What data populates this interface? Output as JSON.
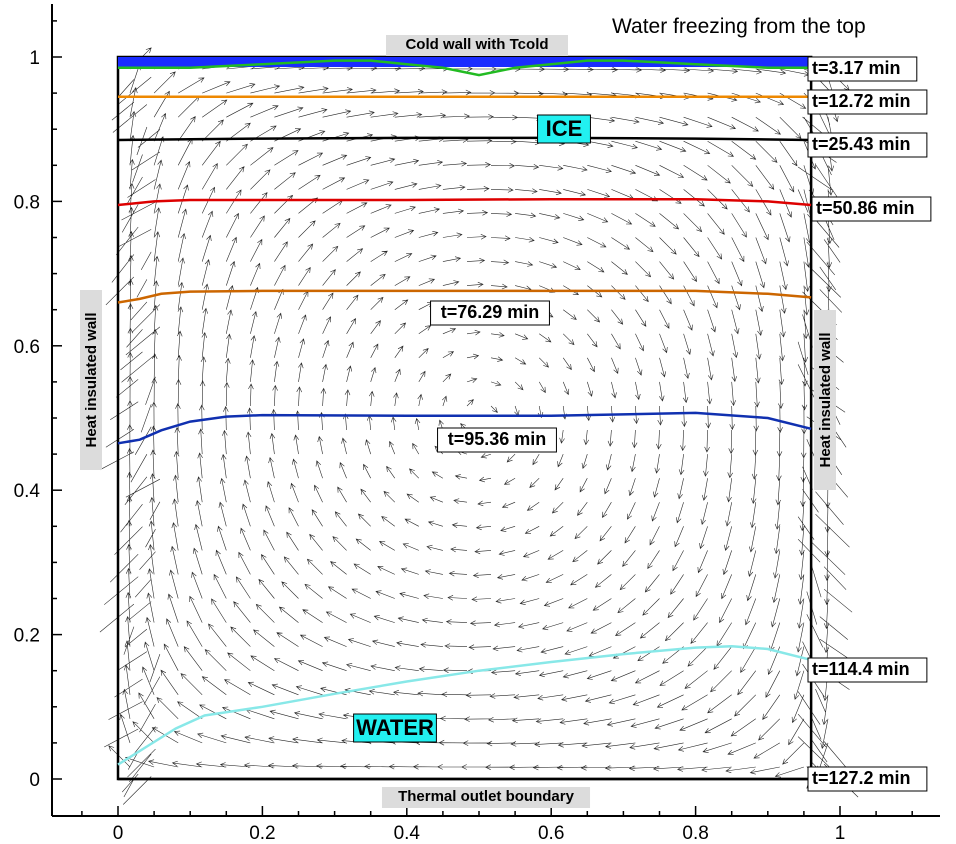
{
  "chart_data": {
    "type": "line",
    "title": "Water freezing from the top",
    "xlabel": "",
    "ylabel": "",
    "xlim": [
      -0.07,
      1.13
    ],
    "ylim": [
      -0.05,
      1.065
    ],
    "x_ticks": [
      "0",
      "0.2",
      "0.4",
      "0.6",
      "0.8",
      "1"
    ],
    "x_tick_values": [
      0,
      0.2,
      0.4,
      0.6,
      0.8,
      1
    ],
    "y_ticks": [
      "0",
      "0.2",
      "0.4",
      "0.6",
      "0.8",
      "1"
    ],
    "y_tick_values": [
      0,
      0.2,
      0.4,
      0.6,
      0.8,
      1
    ],
    "grid": false,
    "annotations": {
      "top_wall": "Cold wall with Tcold",
      "bottom_wall": "Thermal outlet boundary",
      "left_wall": "Heat insulated wall",
      "right_wall": "Heat insulated wall",
      "ice": "ICE",
      "water": "WATER"
    },
    "series": [
      {
        "name": "t=3.17 min",
        "color": "#22bb22",
        "x": [
          0,
          0.1,
          0.2,
          0.3,
          0.35,
          0.4,
          0.45,
          0.5,
          0.55,
          0.6,
          0.65,
          0.7,
          0.8,
          0.9,
          0.96
        ],
        "y": [
          0.985,
          0.985,
          0.99,
          0.995,
          0.995,
          0.99,
          0.985,
          0.975,
          0.985,
          0.99,
          0.995,
          0.995,
          0.99,
          0.985,
          0.985
        ]
      },
      {
        "name": "t=12.72 min",
        "color": "#ee8800",
        "x": [
          0,
          0.2,
          0.4,
          0.6,
          0.8,
          0.96
        ],
        "y": [
          0.945,
          0.945,
          0.945,
          0.945,
          0.945,
          0.945
        ]
      },
      {
        "name": "t=25.43 min",
        "color": "#000000",
        "x": [
          0,
          0.2,
          0.4,
          0.6,
          0.8,
          0.96
        ],
        "y": [
          0.885,
          0.887,
          0.888,
          0.888,
          0.887,
          0.885
        ]
      },
      {
        "name": "t=50.86 min",
        "color": "#dd0000",
        "x": [
          0,
          0.05,
          0.1,
          0.2,
          0.4,
          0.6,
          0.8,
          0.9,
          0.96
        ],
        "y": [
          0.795,
          0.8,
          0.802,
          0.802,
          0.802,
          0.803,
          0.803,
          0.8,
          0.795
        ]
      },
      {
        "name": "t=76.29 min",
        "color": "#cc6600",
        "x": [
          0,
          0.03,
          0.06,
          0.1,
          0.2,
          0.4,
          0.6,
          0.8,
          0.9,
          0.96
        ],
        "y": [
          0.66,
          0.665,
          0.672,
          0.675,
          0.676,
          0.676,
          0.676,
          0.676,
          0.672,
          0.667
        ]
      },
      {
        "name": "t=95.36 min",
        "color": "#1030b0",
        "x": [
          0,
          0.03,
          0.06,
          0.1,
          0.15,
          0.2,
          0.4,
          0.6,
          0.8,
          0.9,
          0.96
        ],
        "y": [
          0.465,
          0.47,
          0.483,
          0.495,
          0.502,
          0.504,
          0.503,
          0.503,
          0.507,
          0.5,
          0.485
        ]
      },
      {
        "name": "t=114.4 min",
        "color": "#88e8e8",
        "x": [
          0,
          0.04,
          0.08,
          0.12,
          0.2,
          0.3,
          0.4,
          0.5,
          0.6,
          0.7,
          0.8,
          0.85,
          0.9,
          0.96
        ],
        "y": [
          0.02,
          0.045,
          0.07,
          0.088,
          0.1,
          0.118,
          0.135,
          0.15,
          0.162,
          0.173,
          0.182,
          0.184,
          0.18,
          0.165
        ]
      },
      {
        "name": "t=127.2 min",
        "color": "#000000",
        "x": [
          0,
          0.96
        ],
        "y": [
          0.0,
          0.0
        ]
      }
    ]
  }
}
